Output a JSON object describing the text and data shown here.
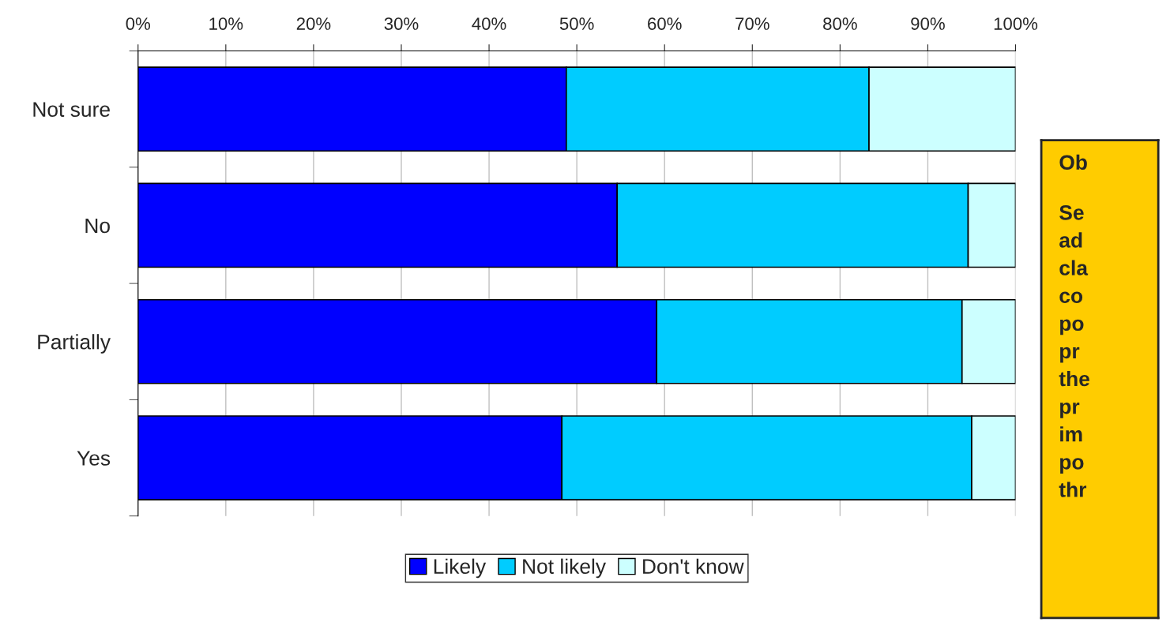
{
  "chart_data": {
    "type": "bar",
    "orientation": "horizontal",
    "stacked": true,
    "categories": [
      "Not sure",
      "No",
      "Partially",
      "Yes"
    ],
    "series": [
      {
        "name": "Likely",
        "color": "#0000ff",
        "values": [
          48.8,
          54.6,
          59.1,
          48.3
        ]
      },
      {
        "name": "Not likely",
        "color": "#00ccff",
        "values": [
          34.5,
          40.0,
          34.8,
          46.7
        ]
      },
      {
        "name": "Don't know",
        "color": "#ccffff",
        "values": [
          16.7,
          5.4,
          6.1,
          5.0
        ]
      }
    ],
    "xlim": [
      0,
      100
    ],
    "xticks": [
      {
        "value": 0,
        "label": "0%"
      },
      {
        "value": 10,
        "label": "10%"
      },
      {
        "value": 20,
        "label": "20%"
      },
      {
        "value": 30,
        "label": "30%"
      },
      {
        "value": 40,
        "label": "40%"
      },
      {
        "value": 50,
        "label": "50%"
      },
      {
        "value": 60,
        "label": "60%"
      },
      {
        "value": 70,
        "label": "70%"
      },
      {
        "value": 80,
        "label": "80%"
      },
      {
        "value": 90,
        "label": "90%"
      },
      {
        "value": 100,
        "label": "100%"
      }
    ],
    "grid": "x",
    "legend": "bottom",
    "annotations": [
      "Ob",
      "Se\nad\ncla\nco\npo\npr\nthe\npr\nim\npo\nthr"
    ]
  }
}
